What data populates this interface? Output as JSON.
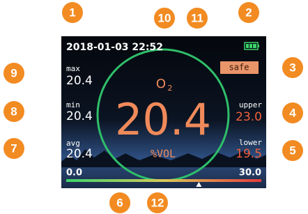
{
  "screen": {
    "datetime": "2018-01-03 22:52",
    "status": "safe",
    "gas": {
      "base": "O",
      "subscript": "2"
    },
    "reading": "20.4",
    "unit": "%VOL",
    "max": {
      "label": "max",
      "value": "20.4"
    },
    "min": {
      "label": "min",
      "value": "20.4"
    },
    "avg": {
      "label": "avg",
      "value": "20.4"
    },
    "upper": {
      "label": "upper",
      "value": "23.0"
    },
    "lower": {
      "label": "lower",
      "value": "19.5"
    },
    "scale": {
      "min": "0.0",
      "max": "30.0"
    }
  },
  "callouts": [
    "1",
    "2",
    "3",
    "4",
    "5",
    "6",
    "7",
    "8",
    "9",
    "10",
    "11",
    "12"
  ]
}
